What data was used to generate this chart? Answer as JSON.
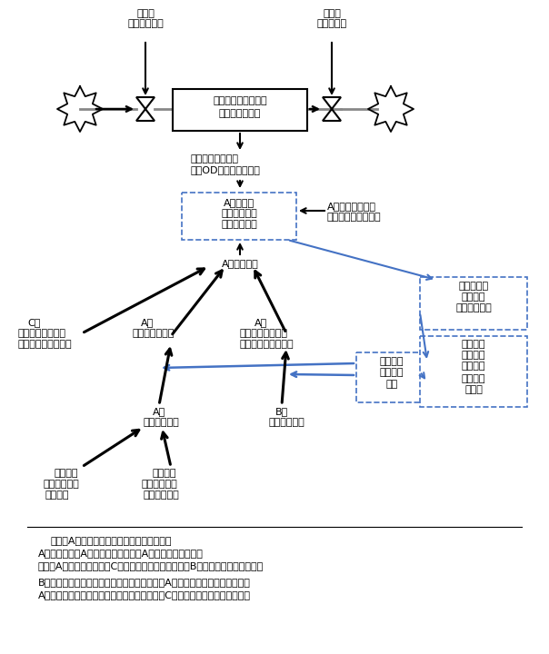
{
  "fig_width": 6.04,
  "fig_height": 7.2,
  "dpi": 100,
  "bg_color": "#ffffff",
  "note_text": [
    "（注）A港に着目した因果ループ図を示す。",
    "A港拡大需要＝A港ダイレクト貨物＋A港トランシップ貨物",
    "　＝（A港ローカル需要－C港へのフィーダー輸送）＋B港からのフィーダー輸送",
    "",
    "B港ローカル需要の一部が、フィーダー輸送でA港トランシップ貨物となる。",
    "A港ローカル需要の一部が、フィーダー輸送でC港トランシップ貨物となる。"
  ]
}
